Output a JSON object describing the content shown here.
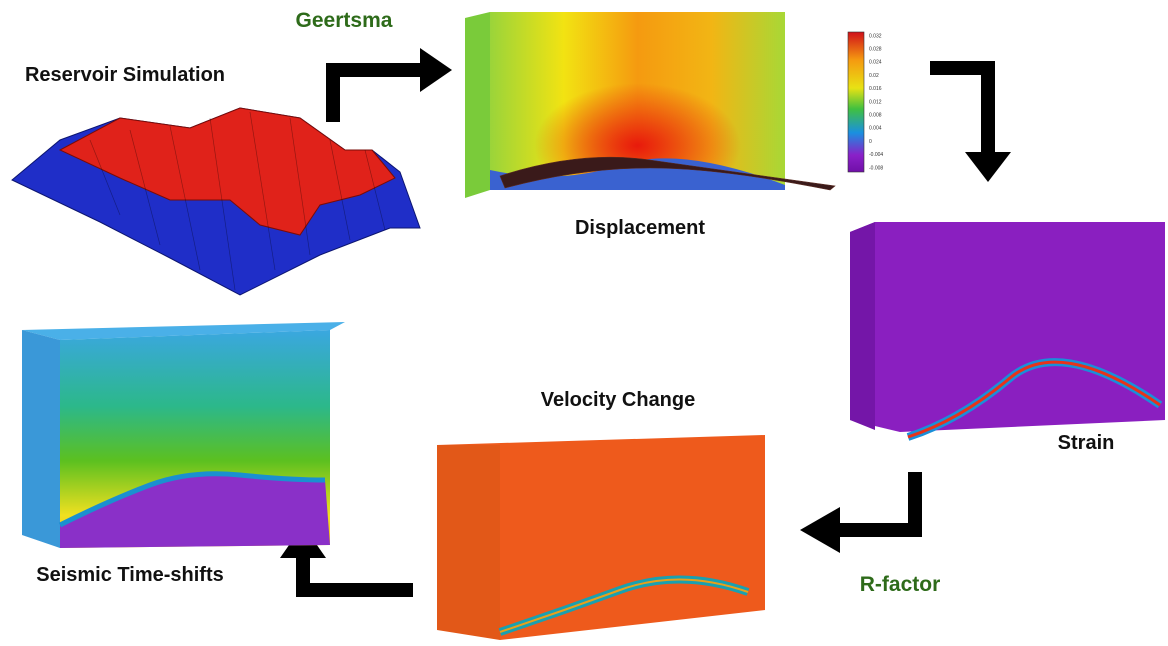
{
  "steps": [
    {
      "label": "Reservoir Simulation"
    },
    {
      "label": "Displacement"
    },
    {
      "label": "Strain"
    },
    {
      "label": "Velocity Change"
    },
    {
      "label": "Seismic Time-shifts"
    }
  ],
  "transitions": [
    {
      "label": "Geertsma"
    },
    {
      "label": "R-factor"
    }
  ],
  "colorbar": {
    "ticks": [
      "0.032",
      "0.028",
      "0.024",
      "0.02",
      "0.016",
      "0.012",
      "0.008",
      "0.004",
      "0",
      "-0.004",
      "-0.008"
    ]
  }
}
